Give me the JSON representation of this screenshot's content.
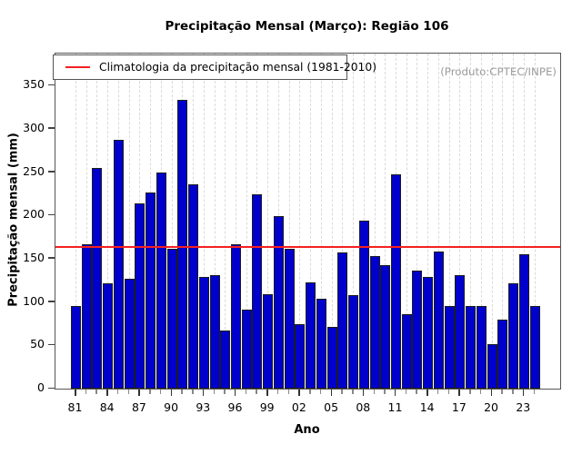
{
  "chart_data": {
    "type": "bar",
    "title": "Precipitação Mensal (Março): Região 106",
    "xlabel": "Ano",
    "ylabel": "Precipitação mensal (mm)",
    "watermark": "(Produto:CPTEC/INPE)",
    "legend": {
      "label": "Climatologia da precipitação mensal (1981-2010)",
      "color": "#f52020",
      "position": "top-left"
    },
    "ylim": [
      0,
      387
    ],
    "yticks": [
      0,
      50,
      100,
      150,
      200,
      250,
      300,
      350
    ],
    "xtick_labels": [
      "81",
      "84",
      "87",
      "90",
      "93",
      "96",
      "99",
      "02",
      "05",
      "08",
      "11",
      "14",
      "17",
      "20",
      "23"
    ],
    "xtick_label_every": 3,
    "grid": "vertical-dashed",
    "years": [
      1981,
      1982,
      1983,
      1984,
      1985,
      1986,
      1987,
      1988,
      1989,
      1990,
      1991,
      1992,
      1993,
      1994,
      1995,
      1996,
      1997,
      1998,
      1999,
      2000,
      2001,
      2002,
      2003,
      2004,
      2005,
      2006,
      2007,
      2008,
      2009,
      2010,
      2011,
      2012,
      2013,
      2014,
      2015,
      2016,
      2017,
      2018,
      2019,
      2020,
      2021,
      2022,
      2023,
      2024
    ],
    "values": [
      95,
      167,
      255,
      122,
      287,
      127,
      214,
      227,
      250,
      162,
      334,
      236,
      129,
      131,
      67,
      167,
      91,
      225,
      109,
      199,
      162,
      74,
      123,
      104,
      71,
      157,
      108,
      194,
      153,
      143,
      248,
      86,
      136,
      129,
      158,
      96,
      131,
      96,
      95,
      51,
      80,
      122,
      155,
      95
    ],
    "climatology_value": 163.5,
    "colors": {
      "bar": "#0000CD",
      "bar_border": "#1c1c1c",
      "climatology_line": "#f52020",
      "gridline": "#dadada",
      "box": "#555555",
      "watermark_text": "#9b9b9b"
    }
  }
}
